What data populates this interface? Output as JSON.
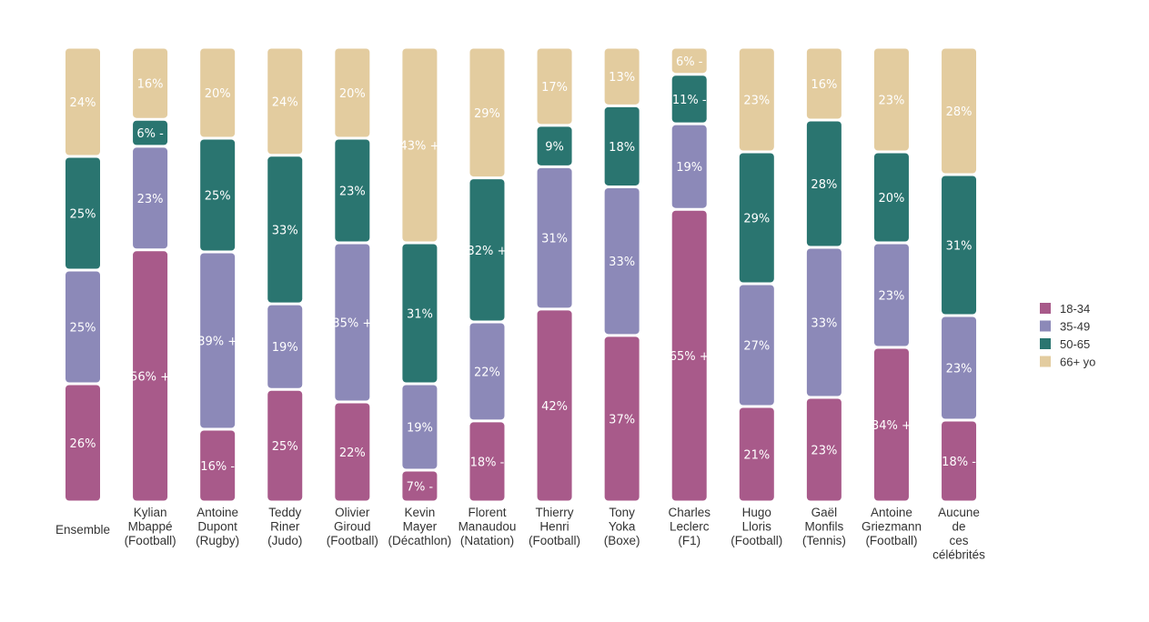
{
  "chart_data": {
    "type": "bar",
    "stacked": true,
    "title": "",
    "xlabel": "",
    "ylabel": "",
    "ylim": [
      0,
      100
    ],
    "grid": false,
    "legend_position": "right",
    "categories": [
      [
        "Ensemble"
      ],
      [
        "Kylian",
        "Mbappé",
        "(Football)"
      ],
      [
        "Antoine",
        "Dupont",
        "(Rugby)"
      ],
      [
        "Teddy",
        "Riner",
        "(Judo)"
      ],
      [
        "Olivier",
        "Giroud",
        "(Football)"
      ],
      [
        "Kevin",
        "Mayer",
        "(Décathlon)"
      ],
      [
        "Florent",
        "Manaudou",
        "(Natation)"
      ],
      [
        "Thierry",
        "Henri",
        "(Football)"
      ],
      [
        "Tony",
        "Yoka",
        "(Boxe)"
      ],
      [
        "Charles",
        "Leclerc",
        "(F1)"
      ],
      [
        "Hugo",
        "Lloris",
        "(Football)"
      ],
      [
        "Gaël",
        "Monfils",
        "(Tennis)"
      ],
      [
        "Antoine",
        "Griezmann",
        "(Football)"
      ],
      [
        "Aucune",
        "de",
        "ces",
        "célébrités"
      ]
    ],
    "series": [
      {
        "name": "18-34",
        "color": "#a85a8a",
        "values": [
          26,
          56,
          16,
          25,
          22,
          7,
          18,
          42,
          37,
          65,
          21,
          23,
          34,
          18
        ],
        "labels": [
          "26%",
          "56% +",
          "16% -",
          "25%",
          "22%",
          "7% -",
          "18% -",
          "42%",
          "37%",
          "65% +",
          "21%",
          "23%",
          "34% +",
          "18% -"
        ]
      },
      {
        "name": "35-49",
        "color": "#8c89b8",
        "values": [
          25,
          23,
          39,
          19,
          35,
          19,
          22,
          31,
          33,
          19,
          27,
          33,
          23,
          23
        ],
        "labels": [
          "25%",
          "23%",
          "39% +",
          "19%",
          "35% +",
          "19%",
          "22%",
          "31%",
          "33%",
          "19%",
          "27%",
          "33%",
          "23%",
          "23%"
        ]
      },
      {
        "name": "50-65",
        "color": "#2a7570",
        "values": [
          25,
          6,
          25,
          33,
          23,
          31,
          32,
          9,
          18,
          11,
          29,
          28,
          20,
          31
        ],
        "labels": [
          "25%",
          "6% -",
          "25%",
          "33%",
          "23%",
          "31%",
          "32% +",
          "9%",
          "18%",
          "11% -",
          "29%",
          "28%",
          "20%",
          "31%"
        ]
      },
      {
        "name": "66+ yo",
        "color": "#e3cc9f",
        "values": [
          24,
          16,
          20,
          24,
          20,
          43,
          29,
          17,
          13,
          6,
          23,
          16,
          23,
          28
        ],
        "labels": [
          "24%",
          "16%",
          "20%",
          "24%",
          "20%",
          "43% +",
          "29%",
          "17%",
          "13%",
          "6% -",
          "23%",
          "16%",
          "23%",
          "28%"
        ]
      }
    ]
  }
}
